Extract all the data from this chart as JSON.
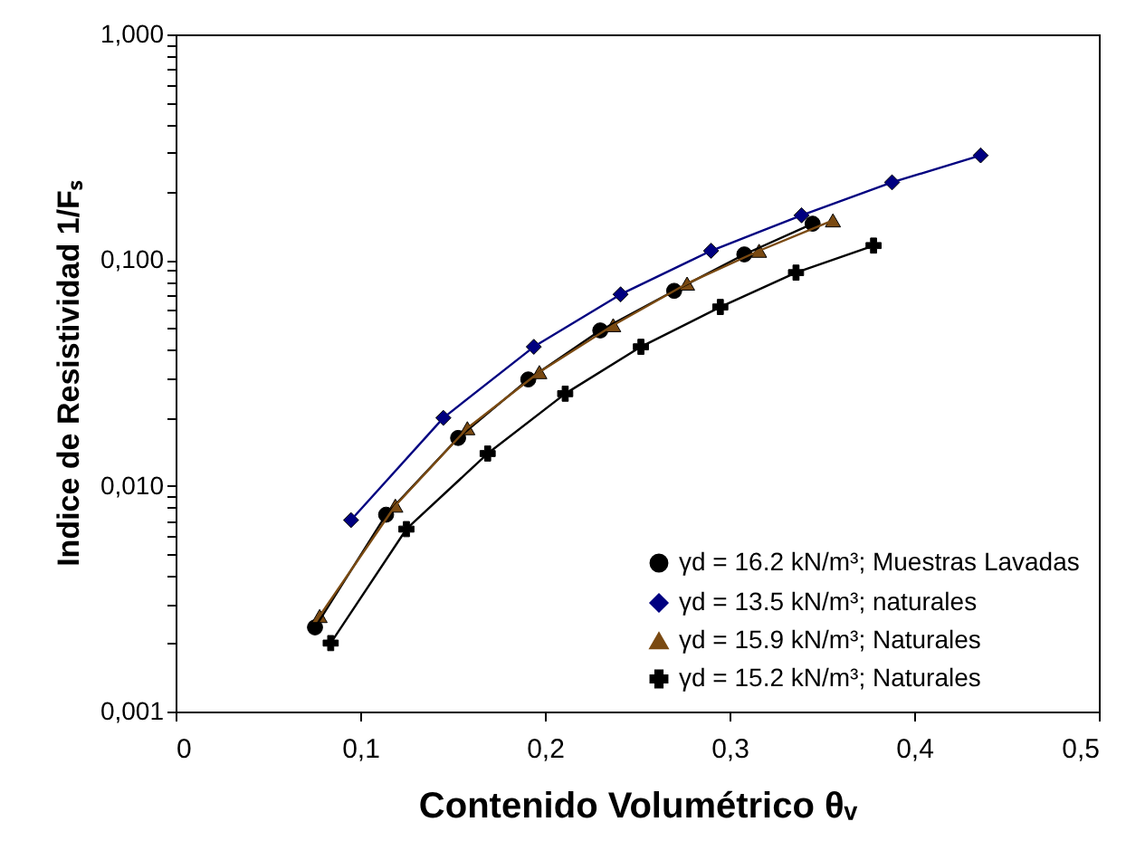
{
  "chart_data": {
    "type": "line",
    "xlabel": "Contenido Volumétrico θᵥ",
    "ylabel": "Indice de Resistividad 1/Fₛ",
    "log": "y",
    "grid": false,
    "legend": "bottom right",
    "line_style": "solid",
    "xlim": [
      0,
      0.5
    ],
    "xticks": [
      0,
      {
        "value": 0.1,
        "label": "0,1"
      },
      {
        "value": 0.2,
        "label": "0,2"
      },
      {
        "value": 0.3,
        "label": "0,3"
      },
      {
        "value": 0.4,
        "label": "0,4"
      },
      {
        "value": 0.5,
        "label": "0,5"
      }
    ],
    "ylim": [
      0.001,
      1
    ],
    "yticks": [
      {
        "value": 0.001,
        "label": "0,001"
      },
      {
        "value": 0.002,
        "label": null
      },
      {
        "value": 0.003,
        "label": null
      },
      {
        "value": 0.004,
        "label": null
      },
      {
        "value": 0.005,
        "label": null
      },
      {
        "value": 0.006,
        "label": null
      },
      {
        "value": 0.007,
        "label": null
      },
      {
        "value": 0.008,
        "label": null
      },
      {
        "value": 0.009,
        "label": null
      },
      {
        "value": 0.01,
        "label": "0,010"
      },
      {
        "value": 0.02,
        "label": null
      },
      {
        "value": 0.03,
        "label": null
      },
      {
        "value": 0.04,
        "label": null
      },
      {
        "value": 0.05,
        "label": null
      },
      {
        "value": 0.06,
        "label": null
      },
      {
        "value": 0.07,
        "label": null
      },
      {
        "value": 0.08,
        "label": null
      },
      {
        "value": 0.09,
        "label": null
      },
      {
        "value": 0.1,
        "label": "0,100"
      },
      {
        "value": 0.2,
        "label": null
      },
      {
        "value": 0.3,
        "label": null
      },
      {
        "value": 0.4,
        "label": null
      },
      {
        "value": 0.5,
        "label": null
      },
      {
        "value": 0.6,
        "label": null
      },
      {
        "value": 0.7,
        "label": null
      },
      {
        "value": 0.8,
        "label": null
      },
      {
        "value": 0.9,
        "label": null
      },
      {
        "value": 1,
        "label": "1,000"
      }
    ],
    "series": [
      {
        "name": "γd = 16.2 kN/m³; Muestras Lavadas",
        "color": "#000000",
        "marker": "circle",
        "x": [
          0.0755,
          0.114,
          0.153,
          0.191,
          0.23,
          0.27,
          0.308,
          0.345
        ],
        "values": [
          0.00236,
          0.00745,
          0.0163,
          0.0296,
          0.0488,
          0.0731,
          0.106,
          0.145
        ]
      },
      {
        "name": "γd = 13.5 kN/m³; naturales",
        "color": "#000080",
        "marker": "diamond",
        "x": [
          0.095,
          0.145,
          0.194,
          0.241,
          0.29,
          0.339,
          0.388,
          0.436
        ],
        "values": [
          0.00705,
          0.02,
          0.0413,
          0.0705,
          0.11,
          0.158,
          0.221,
          0.291
        ]
      },
      {
        "name": "γd = 15.9 kN/m³; Naturales",
        "color": "#7a4a12",
        "marker": "triangle",
        "x": [
          0.078,
          0.119,
          0.158,
          0.197,
          0.237,
          0.277,
          0.316,
          0.356
        ],
        "values": [
          0.00265,
          0.00817,
          0.018,
          0.0319,
          0.0515,
          0.0787,
          0.11,
          0.15
        ]
      },
      {
        "name": "γd = 15.2 kN/m³; Naturales",
        "color": "#000000",
        "marker": "cross",
        "x": [
          0.084,
          0.125,
          0.169,
          0.211,
          0.252,
          0.295,
          0.336,
          0.378
        ],
        "values": [
          0.00201,
          0.00643,
          0.0139,
          0.0256,
          0.0413,
          0.062,
          0.088,
          0.116
        ]
      }
    ]
  }
}
